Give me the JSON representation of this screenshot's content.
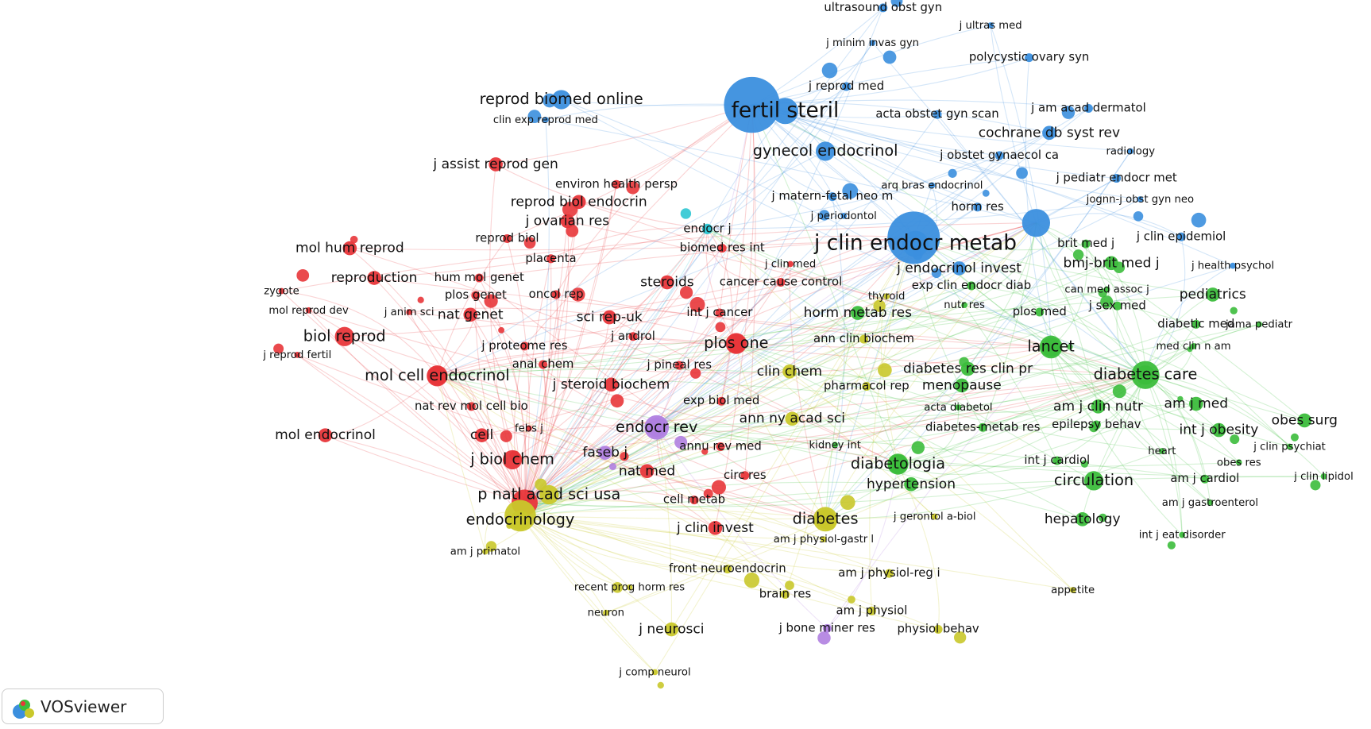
{
  "network": {
    "clusters": [
      {
        "color": "#e8363a",
        "nodes": [
          "j assist reprod gen",
          "environ health persp",
          "reprod biol endocrin",
          "j ovarian res",
          "reprod biol",
          "placenta",
          "mol hum reprod",
          "biomed res int",
          "reproduction",
          "hum mol genet",
          "zygote",
          "plos genet",
          "oncol rep",
          "steroids",
          "cancer cause control",
          "mol reprod dev",
          "j anim sci",
          "nat genet",
          "sci rep-uk",
          "int j cancer",
          "biol reprod",
          "j androl",
          "plos one",
          "j reprod fertil",
          "j proteome res",
          "anal chem",
          "j pineal res",
          "mol cell endocrinol",
          "j steroid biochem",
          "nat rev mol cell bio",
          "exp biol med",
          "mol endocrinol",
          "cell",
          "febs j",
          "j biol chem",
          "nat med",
          "annu rev med",
          "circ res",
          "cell metab",
          "j clin invest",
          "j clin med"
        ]
      },
      {
        "color": "#3b8fde",
        "nodes": [
          "ultrasound obst gyn",
          "j ultras med",
          "j minim invas gyn",
          "polycystic ovary syn",
          "j reprod med",
          "reprod biomed online",
          "fertil steril",
          "acta obstet gyn scan",
          "j am acad dermatol",
          "clin exp reprod med",
          "cochrane db syst rev",
          "gynecol endocrinol",
          "j obstet gynaecol ca",
          "radiology",
          "arq bras endocrinol",
          "j pediatr endocr met",
          "jognn-j obst gyn neo",
          "horm res",
          "j matern-fetal neo m",
          "j periodontol",
          "j clin endocr metab",
          "j endocrinol invest",
          "j clin epidemiol",
          "j health psychol"
        ]
      },
      {
        "color": "#2fc6d3",
        "nodes": [
          "endocr j"
        ]
      },
      {
        "color": "#b07fe0",
        "nodes": [
          "endocr rev",
          "faseb j",
          "j bone miner res"
        ]
      },
      {
        "color": "#c9c82b",
        "nodes": [
          "ann clin biochem",
          "clin chem",
          "pharmacol rep",
          "ann ny acad sci",
          "p natl acad sci usa",
          "endocrinology",
          "diabetes",
          "am j physiol-gastr l",
          "j gerontol a-biol",
          "am j primatol",
          "front neuroendocrin",
          "am j physiol-reg i",
          "recent prog horm res",
          "brain res",
          "appetite",
          "neuron",
          "am j physiol",
          "physiol behav",
          "j neurosci",
          "j comp neurol",
          "thyroid"
        ]
      },
      {
        "color": "#3cbd3c",
        "nodes": [
          "exp clin endocr diab",
          "can med assoc j",
          "brit med j",
          "bmj-brit med j",
          "pediatrics",
          "horm metab res",
          "nutr res",
          "plos med",
          "j sex med",
          "diabetic med",
          "jama pediatr",
          "lancet",
          "med clin n am",
          "diabetes res clin pr",
          "menopause",
          "diabetes care",
          "acta diabetol",
          "am j clin nutr",
          "am j med",
          "obes surg",
          "kidney int",
          "diabetes-metab res",
          "epilepsy behav",
          "int j obesity",
          "j clin psychiat",
          "heart",
          "diabetologia",
          "int j cardiol",
          "obes res",
          "j clin lipidol",
          "hypertension",
          "circulation",
          "am j cardiol",
          "am j gastroenterol",
          "hepatology",
          "int j eat disorder"
        ]
      }
    ]
  },
  "watermark": "VOSviewer"
}
